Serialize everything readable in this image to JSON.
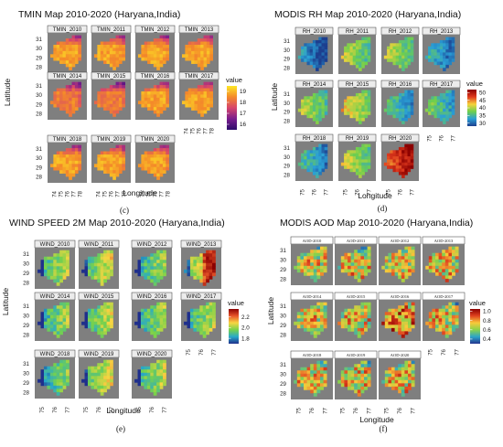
{
  "chart_data": [
    {
      "type": "heatmap",
      "title": "TMIN Map 2010-2020 (Haryana,India)",
      "caption": "(c)",
      "panels": [
        "TMIN_2010",
        "TMIN_2011",
        "TMIN_2012",
        "TMIN_2013",
        "TMIN_2014",
        "TMIN_2015",
        "TMIN_2016",
        "TMIN_2017",
        "TMIN_2018",
        "TMIN_2019",
        "TMIN_2020"
      ],
      "xlabel": "Longitude",
      "ylabel": "Latitude",
      "x_ticks": [
        "74",
        "75",
        "76",
        "77",
        "78"
      ],
      "y_ticks": [
        "31",
        "30",
        "29",
        "28"
      ],
      "legend": {
        "title": "value",
        "labels": [
          "19",
          "18",
          "17",
          "16"
        ],
        "range": [
          15.5,
          19.5
        ],
        "colors": [
          "#fde725",
          "#f48a29",
          "#d6456c",
          "#7a1d8e",
          "#2d0c6b"
        ]
      }
    },
    {
      "type": "heatmap",
      "title": "MODIS RH Map 2010-2020 (Haryana,India)",
      "caption": "(d)",
      "panels": [
        "RH_2010",
        "RH_2011",
        "RH_2012",
        "RH_2013",
        "RH_2014",
        "RH_2015",
        "RH_2016",
        "RH_2017",
        "RH_2018",
        "RH_2019",
        "RH_2020"
      ],
      "xlabel": "Longitude",
      "ylabel": "Latitude",
      "x_ticks": [
        "75",
        "76",
        "77"
      ],
      "y_ticks": [
        "31",
        "30",
        "29",
        "28"
      ],
      "legend": {
        "title": "value",
        "labels": [
          "50",
          "45",
          "40",
          "35",
          "30"
        ],
        "range": [
          28,
          52
        ],
        "colors": [
          "#8b0000",
          "#e03a1e",
          "#f6d23a",
          "#6fcf4d",
          "#2a9fd6",
          "#1d3f8f"
        ]
      }
    },
    {
      "type": "heatmap",
      "title": "WIND SPEED 2M Map 2010-2020 (Haryana,India)",
      "caption": "(e)",
      "panels": [
        "WIND_2010",
        "WIND_2011",
        "WIND_2012",
        "WIND_2013",
        "WIND_2014",
        "WIND_2015",
        "WIND_2016",
        "WIND_2017",
        "WIND_2018",
        "WIND_2019",
        "WIND_2020"
      ],
      "xlabel": "Longitude",
      "ylabel": "Latitude",
      "x_ticks": [
        "75",
        "76",
        "77"
      ],
      "y_ticks": [
        "31",
        "30",
        "29",
        "28"
      ],
      "legend": {
        "title": "value",
        "labels": [
          "2.2",
          "2.0",
          "1.8"
        ],
        "range": [
          1.7,
          2.35
        ],
        "colors": [
          "#8b0000",
          "#e8552a",
          "#f7d642",
          "#77d24b",
          "#28a9c9",
          "#1f2f8c"
        ]
      }
    },
    {
      "type": "heatmap",
      "title": "MODIS AOD Map 2010-2020 (Haryana,India)",
      "caption": "(f)",
      "panels": [
        "AOD-2010",
        "AOD-2011",
        "AOD-2012",
        "AOD-2013",
        "AOD-2014",
        "AOD-2015",
        "AOD-2016",
        "AOD-2017",
        "AOD-2018",
        "AOD-2019",
        "AOD-2020"
      ],
      "xlabel": "Longitude",
      "ylabel": "Latitude",
      "x_ticks": [
        "75",
        "76",
        "77"
      ],
      "y_ticks": [
        "31",
        "30",
        "29",
        "28"
      ],
      "legend": {
        "title": "value",
        "labels": [
          "1.0",
          "0.8",
          "0.6",
          "0.4"
        ],
        "range": [
          0.3,
          1.05
        ],
        "colors": [
          "#8b0000",
          "#e0421f",
          "#f8c93a",
          "#8ad24a",
          "#2ca5c8",
          "#23358f"
        ]
      }
    }
  ]
}
